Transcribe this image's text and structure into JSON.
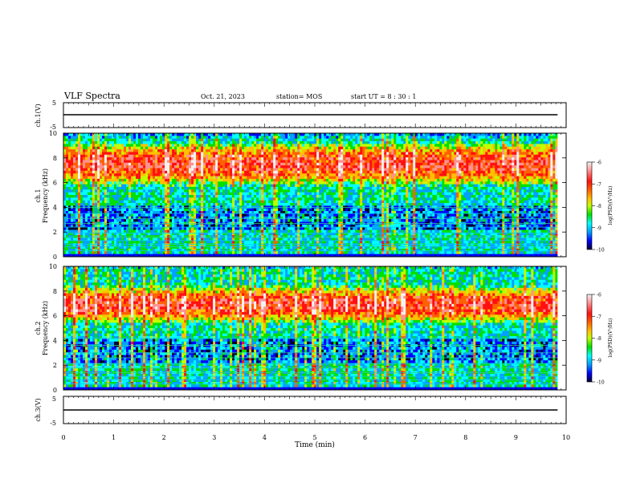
{
  "header": {
    "title": "VLF Spectra",
    "date": "Oct. 21, 2023",
    "station": "station= MOS",
    "start": "start  UT =   8 : 30 : 1"
  },
  "colorbar": {
    "label": "log(PSD)(V²/Hz)",
    "ticks": [
      "-6",
      "-7",
      "-8",
      "-9",
      "-10"
    ],
    "colors": [
      "#f2f2f2",
      "#ff9090",
      "#ff1010",
      "#ff6000",
      "#ffc000",
      "#c0ff00",
      "#00e000",
      "#00ffff",
      "#00a0ff",
      "#0000ff",
      "#000030"
    ]
  },
  "chart_data": [
    {
      "type": "line",
      "name": "ch1-waveform",
      "ylabel": "ch.1(V)",
      "ylim": [
        -5,
        5
      ],
      "yticks": [
        "5",
        "-5"
      ],
      "x": [
        0,
        9.83
      ],
      "values": [
        -2,
        -2
      ]
    },
    {
      "type": "heatmap",
      "name": "ch1-spectrogram",
      "title": "ch.1",
      "ylabel": "Frequency (kHz)",
      "ylim": [
        0,
        10
      ],
      "yticks": [
        "0",
        "2",
        "4",
        "6",
        "8",
        "10"
      ],
      "xlim": [
        0,
        10
      ],
      "zlim": [
        -10,
        -6
      ],
      "profile": {
        "band_center_khz": 7.5,
        "band_width_khz": 3.0,
        "band_level": -6.8,
        "mid_gap_khz": [
          2.2,
          4.2
        ],
        "mid_gap_level": -9.7,
        "floor_level": -8.8,
        "top_level": -9.3
      },
      "lines_khz": [
        0.5,
        0.8,
        1.0,
        1.3,
        1.6,
        1.9,
        2.4,
        2.7,
        3.1,
        3.5,
        4.0
      ]
    },
    {
      "type": "heatmap",
      "name": "ch2-spectrogram",
      "title": "ch.2",
      "ylabel": "Frequency (kHz)",
      "ylim": [
        0,
        10
      ],
      "yticks": [
        "0",
        "2",
        "4",
        "6",
        "8",
        "10"
      ],
      "xlim": [
        0,
        10
      ],
      "zlim": [
        -10,
        -6
      ],
      "profile": {
        "band_center_khz": 6.9,
        "band_width_khz": 2.6,
        "band_level": -6.8,
        "mid_gap_khz": [
          2.2,
          4.2
        ],
        "mid_gap_level": -9.7,
        "floor_level": -8.8,
        "top_level": -9.0
      },
      "lines_khz": [
        0.5,
        0.8,
        1.1,
        1.4,
        1.8,
        2.1,
        2.6,
        3.0,
        3.6,
        4.2
      ]
    },
    {
      "type": "line",
      "name": "ch3-waveform",
      "ylabel": "ch.3(V)",
      "ylim": [
        -5,
        5
      ],
      "yticks": [
        "5",
        "-5"
      ],
      "x": [
        0,
        9.83
      ],
      "values": [
        -2,
        -2
      ]
    }
  ],
  "xaxis": {
    "label": "Time  (min)",
    "ticks": [
      "0",
      "1",
      "2",
      "3",
      "4",
      "5",
      "6",
      "7",
      "8",
      "9",
      "10"
    ],
    "xlim": [
      0,
      10
    ],
    "data_end_min": 9.83
  }
}
